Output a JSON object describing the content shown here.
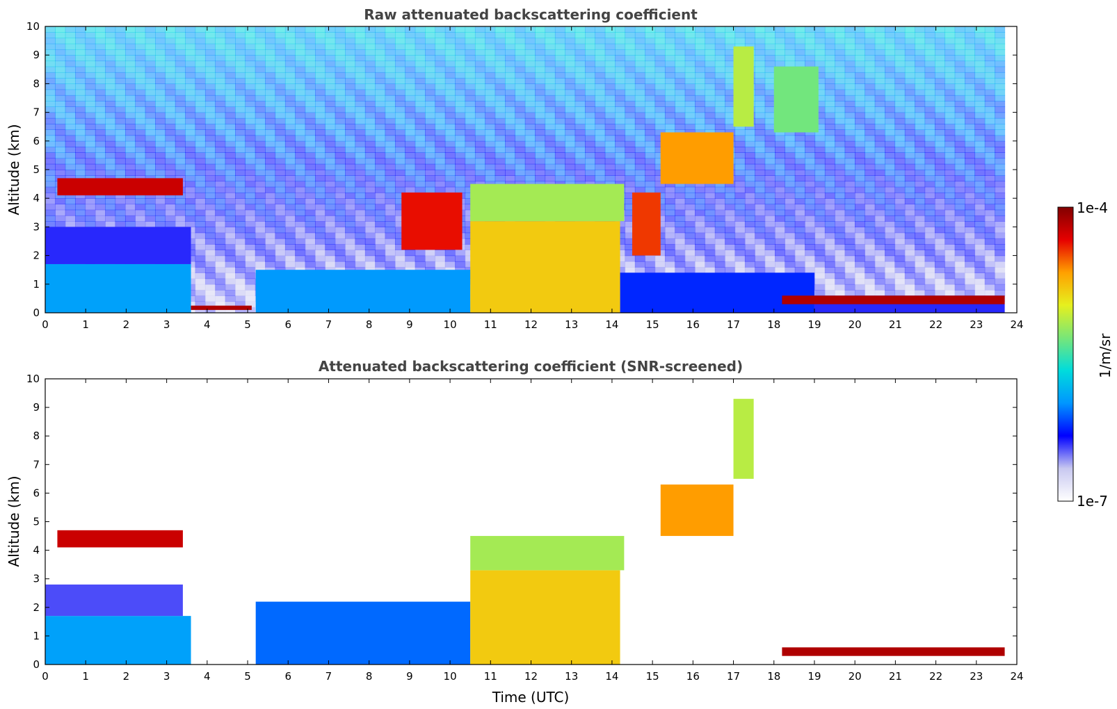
{
  "chart_data": [
    {
      "type": "heatmap",
      "title": "Raw attenuated backscattering coefficient",
      "xlabel": "",
      "ylabel": "Altitude (km)",
      "xlim": [
        0,
        24
      ],
      "ylim": [
        0,
        10
      ],
      "x_ticks": [
        0,
        1,
        2,
        3,
        4,
        5,
        6,
        7,
        8,
        9,
        10,
        11,
        12,
        13,
        14,
        15,
        16,
        17,
        18,
        19,
        20,
        21,
        22,
        23,
        24
      ],
      "y_ticks": [
        0,
        1,
        2,
        3,
        4,
        5,
        6,
        7,
        8,
        9,
        10
      ],
      "data_end_time": 23.7,
      "screened": false,
      "features": [
        {
          "name": "boundary layer aerosol",
          "t": [
            0,
            3.6
          ],
          "alt": [
            0,
            1.7
          ],
          "level": 0.35
        },
        {
          "name": "residual layer",
          "t": [
            0,
            3.6
          ],
          "alt": [
            1.7,
            3.0
          ],
          "level": 0.2
        },
        {
          "name": "elevated aerosol layer",
          "t": [
            5.2,
            10.5
          ],
          "alt": [
            0,
            1.5
          ],
          "level": 0.34
        },
        {
          "name": "afternoon boundary layer",
          "t": [
            14.2,
            19.0
          ],
          "alt": [
            0,
            1.4
          ],
          "level": 0.25
        },
        {
          "name": "night boundary layer",
          "t": [
            19.0,
            23.7
          ],
          "alt": [
            0,
            0.6
          ],
          "level": 0.2
        },
        {
          "name": "low cloud",
          "t": [
            3.6,
            5.1
          ],
          "alt": [
            0.1,
            0.25
          ],
          "level": 0.95
        },
        {
          "name": "low cloud",
          "t": [
            18.2,
            23.7
          ],
          "alt": [
            0.3,
            0.6
          ],
          "level": 0.95
        },
        {
          "name": "convective precipitation",
          "t": [
            10.5,
            14.2
          ],
          "alt": [
            0,
            3.2
          ],
          "level": 0.72
        },
        {
          "name": "cloud top band",
          "t": [
            10.5,
            14.3
          ],
          "alt": [
            3.2,
            4.5
          ],
          "level": 0.6
        },
        {
          "name": "mid-level cloud",
          "t": [
            0.3,
            3.4
          ],
          "alt": [
            4.1,
            4.7
          ],
          "level": 0.92
        },
        {
          "name": "mid-level cloud",
          "t": [
            8.8,
            10.3
          ],
          "alt": [
            2.2,
            4.2
          ],
          "level": 0.88
        },
        {
          "name": "mid-level cloud",
          "t": [
            14.5,
            15.2
          ],
          "alt": [
            2.0,
            4.2
          ],
          "level": 0.85
        },
        {
          "name": "upper cloud",
          "t": [
            15.2,
            17.0
          ],
          "alt": [
            4.5,
            6.3
          ],
          "level": 0.78
        },
        {
          "name": "upper cloud",
          "t": [
            17.0,
            17.5
          ],
          "alt": [
            6.5,
            9.3
          ],
          "level": 0.62
        },
        {
          "name": "upper cloud",
          "t": [
            18.0,
            19.1
          ],
          "alt": [
            6.3,
            8.6
          ],
          "level": 0.55
        }
      ]
    },
    {
      "type": "heatmap",
      "title": "Attenuated backscattering coefficient (SNR-screened)",
      "xlabel": "Time (UTC)",
      "ylabel": "Altitude (km)",
      "xlim": [
        0,
        24
      ],
      "ylim": [
        0,
        10
      ],
      "x_ticks": [
        0,
        1,
        2,
        3,
        4,
        5,
        6,
        7,
        8,
        9,
        10,
        11,
        12,
        13,
        14,
        15,
        16,
        17,
        18,
        19,
        20,
        21,
        22,
        23,
        24
      ],
      "y_ticks": [
        0,
        1,
        2,
        3,
        4,
        5,
        6,
        7,
        8,
        9,
        10
      ],
      "data_end_time": 23.7,
      "screened": true,
      "features": [
        {
          "name": "boundary layer aerosol",
          "t": [
            0,
            3.6
          ],
          "alt": [
            0,
            1.7
          ],
          "level": 0.35
        },
        {
          "name": "residual layer",
          "t": [
            0,
            3.4
          ],
          "alt": [
            1.7,
            2.8
          ],
          "level": 0.18
        },
        {
          "name": "elevated aerosol layer",
          "t": [
            5.2,
            10.5
          ],
          "alt": [
            0,
            2.2
          ],
          "level": 0.3
        },
        {
          "name": "convective precipitation",
          "t": [
            10.5,
            14.2
          ],
          "alt": [
            0,
            3.3
          ],
          "level": 0.72
        },
        {
          "name": "cloud top band",
          "t": [
            10.5,
            14.3
          ],
          "alt": [
            3.3,
            4.5
          ],
          "level": 0.6
        },
        {
          "name": "mid-level cloud",
          "t": [
            0.3,
            3.4
          ],
          "alt": [
            4.1,
            4.7
          ],
          "level": 0.92
        },
        {
          "name": "upper cloud",
          "t": [
            15.2,
            17.0
          ],
          "alt": [
            4.5,
            6.3
          ],
          "level": 0.78
        },
        {
          "name": "upper cloud",
          "t": [
            17.0,
            17.5
          ],
          "alt": [
            6.5,
            9.3
          ],
          "level": 0.62
        },
        {
          "name": "low cloud",
          "t": [
            18.2,
            23.7
          ],
          "alt": [
            0.3,
            0.6
          ],
          "level": 0.95
        }
      ]
    }
  ],
  "colorbar": {
    "label": "1/m/sr",
    "max_label": "1e-4",
    "min_label": "1e-7",
    "scale": "log",
    "range": [
      1e-07,
      0.0001
    ],
    "colormap": [
      "#ffffff",
      "#c8c8f0",
      "#0000ff",
      "#0096ff",
      "#00dcdc",
      "#78e678",
      "#e6f01e",
      "#ffa000",
      "#e60000",
      "#820000"
    ]
  }
}
